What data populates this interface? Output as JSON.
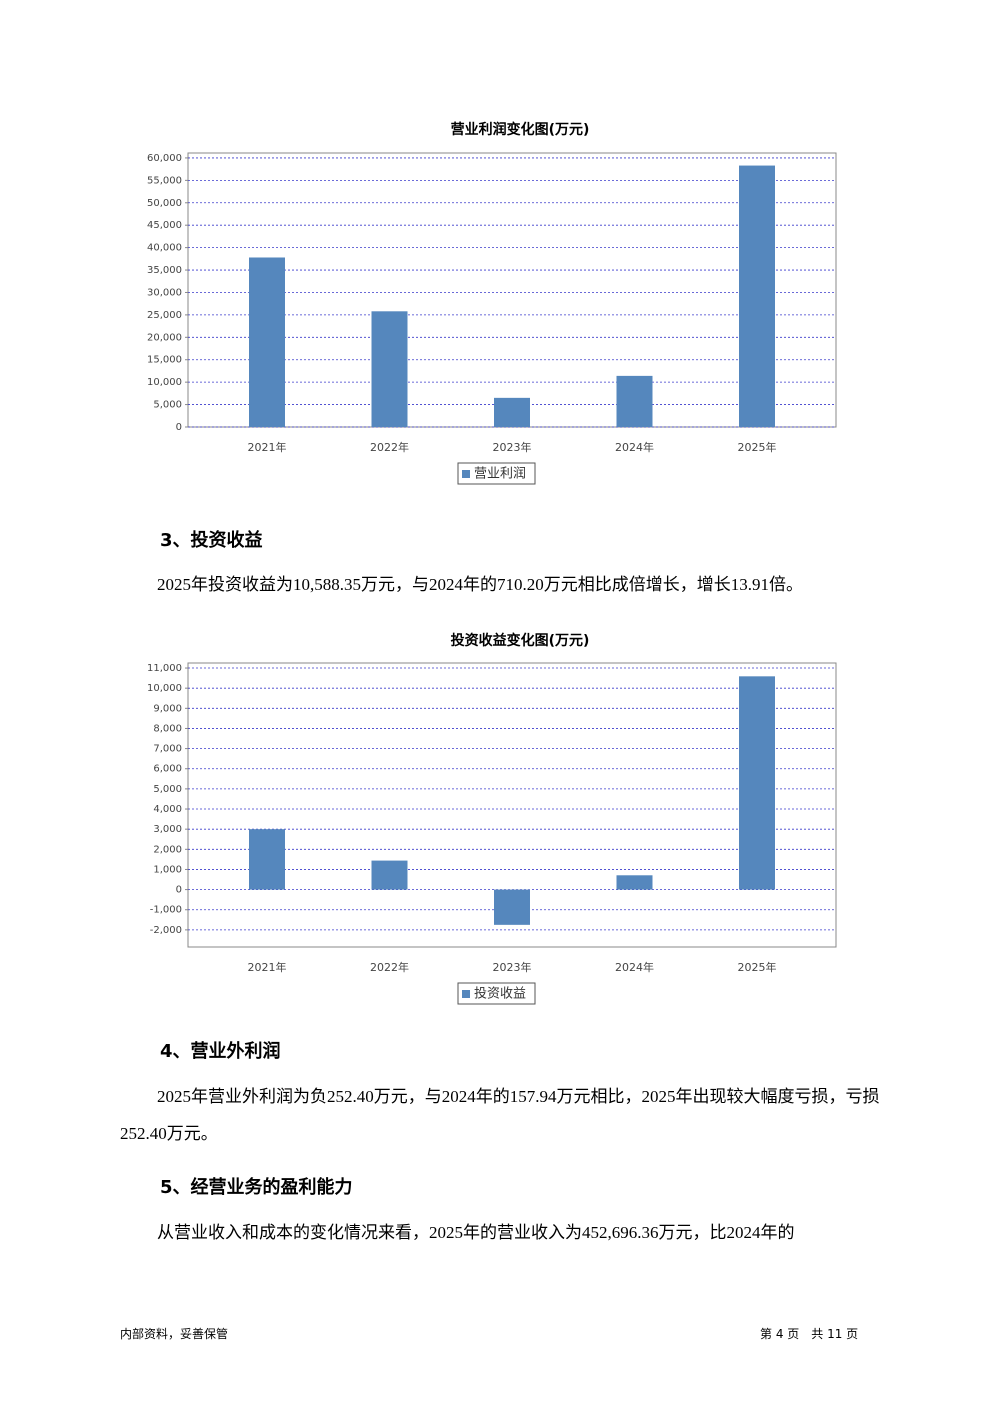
{
  "chart_data": [
    {
      "type": "bar",
      "title": "营业利润变化图(万元)",
      "categories": [
        "2021年",
        "2022年",
        "2023年",
        "2024年",
        "2025年"
      ],
      "series": [
        {
          "name": "营业利润",
          "color": "#5587bd",
          "values": [
            37800,
            25800,
            6500,
            11400,
            58300
          ]
        }
      ],
      "ylim": [
        0,
        61100
      ],
      "yticks": [
        0,
        {
          "value": 5000,
          "label": "5,000"
        },
        {
          "value": 10000,
          "label": "10,000"
        },
        {
          "value": 15000,
          "label": "15,000"
        },
        {
          "value": 20000,
          "label": "20,000"
        },
        {
          "value": 25000,
          "label": "25,000"
        },
        {
          "value": 30000,
          "label": "30,000"
        },
        {
          "value": 35000,
          "label": "35,000"
        },
        {
          "value": 40000,
          "label": "40,000"
        },
        {
          "value": 45000,
          "label": "45,000"
        },
        {
          "value": 50000,
          "label": "50,000"
        },
        {
          "value": 55000,
          "label": "55,000"
        },
        {
          "value": 60000,
          "label": "60,000"
        }
      ],
      "grid": true
    },
    {
      "type": "bar",
      "title": "投资收益变化图(万元)",
      "categories": [
        "2021年",
        "2022年",
        "2023年",
        "2024年",
        "2025年"
      ],
      "series": [
        {
          "name": "投资收益",
          "color": "#5587bd",
          "values": [
            3000,
            1440,
            -1750,
            710.2,
            10588.35
          ]
        }
      ],
      "ylim": [
        -2850,
        11250
      ],
      "yticks": [
        {
          "value": -2000,
          "label": "-2,000"
        },
        {
          "value": -1000,
          "label": "-1,000"
        },
        0,
        {
          "value": 1000,
          "label": "1,000"
        },
        {
          "value": 2000,
          "label": "2,000"
        },
        {
          "value": 3000,
          "label": "3,000"
        },
        {
          "value": 4000,
          "label": "4,000"
        },
        {
          "value": 5000,
          "label": "5,000"
        },
        {
          "value": 6000,
          "label": "6,000"
        },
        {
          "value": 7000,
          "label": "7,000"
        },
        {
          "value": 8000,
          "label": "8,000"
        },
        {
          "value": 9000,
          "label": "9,000"
        },
        {
          "value": 10000,
          "label": "10,000"
        },
        {
          "value": 11000,
          "label": "11,000"
        }
      ],
      "grid": true
    }
  ],
  "sections": [
    {
      "heading": "3、投资收益",
      "paragraph": "2025年投资收益为10,588.35万元，与2024年的710.20万元相比成倍增长，增长13.91倍。"
    },
    {
      "heading": "4、营业外利润",
      "paragraph": "2025年营业外利润为负252.40万元，与2024年的157.94万元相比，2025年出现较大幅度亏损，亏损252.40万元。"
    },
    {
      "heading": "5、经营业务的盈利能力",
      "paragraph": "从营业收入和成本的变化情况来看，2025年的营业收入为452,696.36万元，比2024年的"
    }
  ],
  "footer": {
    "left": "内部资料，妥善保管",
    "right": "第 4 页　共 11 页"
  }
}
